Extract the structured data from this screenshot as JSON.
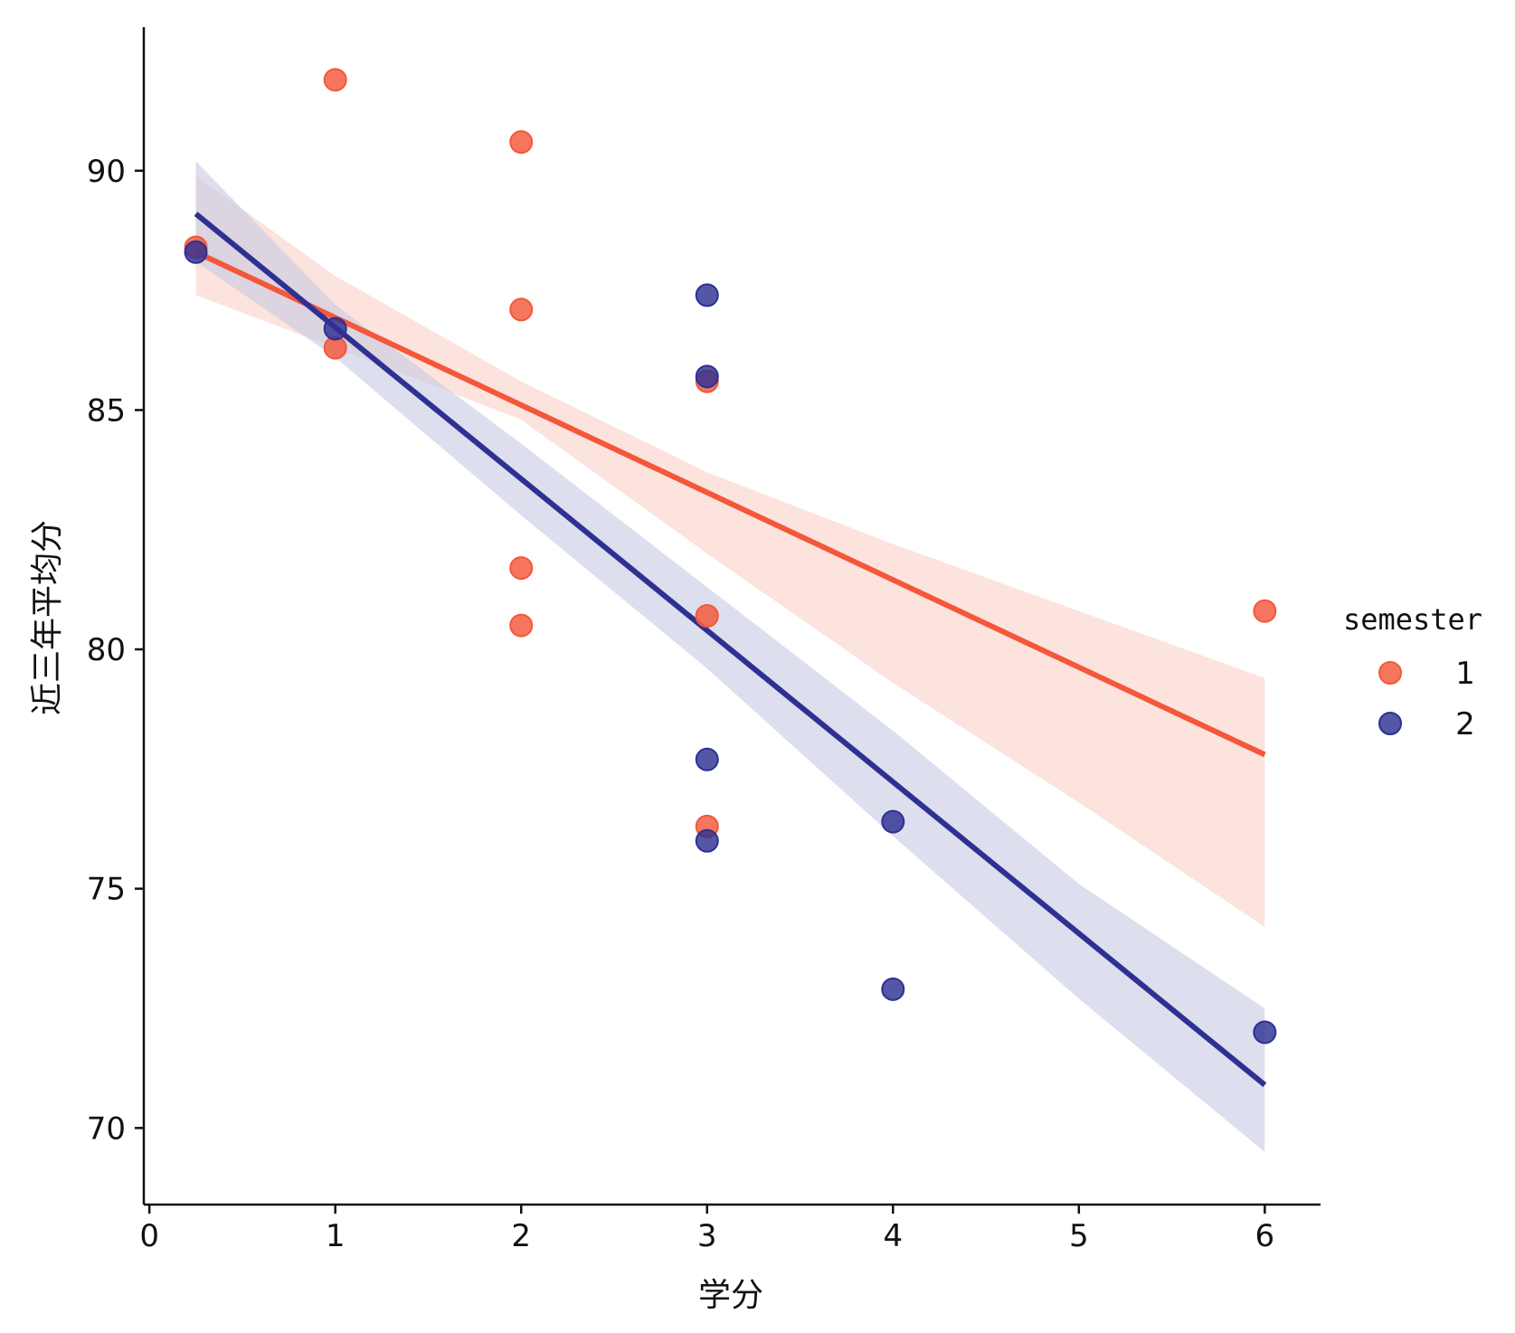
{
  "chart_data": {
    "type": "scatter",
    "title": "",
    "xlabel": "学分",
    "ylabel": "近三年平均分",
    "xlim": [
      -0.03,
      6.3
    ],
    "ylim": [
      68.4,
      93.0
    ],
    "x_ticks": [
      0,
      1,
      2,
      3,
      4,
      5,
      6
    ],
    "y_ticks": [
      70,
      75,
      80,
      85,
      90
    ],
    "grid": false,
    "legend": {
      "title": "semester",
      "placement": "right",
      "entries": [
        "1",
        "2"
      ]
    },
    "series": [
      {
        "name": "1",
        "color": "#F4573A",
        "band_color": "#FAD0C6",
        "points": [
          {
            "x": 0.25,
            "y": 88.4
          },
          {
            "x": 1,
            "y": 91.9
          },
          {
            "x": 1,
            "y": 86.3
          },
          {
            "x": 2,
            "y": 90.6
          },
          {
            "x": 2,
            "y": 87.1
          },
          {
            "x": 2,
            "y": 81.7
          },
          {
            "x": 2,
            "y": 80.5
          },
          {
            "x": 3,
            "y": 85.6
          },
          {
            "x": 3,
            "y": 80.7
          },
          {
            "x": 3,
            "y": 76.3
          },
          {
            "x": 6,
            "y": 80.8
          }
        ],
        "regression": {
          "x": [
            0.25,
            6
          ],
          "y": [
            88.3,
            77.8
          ]
        },
        "ci_band": {
          "x": [
            0.25,
            1,
            2,
            3,
            4,
            5,
            6
          ],
          "lower": [
            87.4,
            86.3,
            84.8,
            82.0,
            79.3,
            76.8,
            74.2
          ],
          "upper": [
            89.9,
            87.8,
            85.6,
            83.7,
            82.2,
            80.8,
            79.4
          ]
        }
      },
      {
        "name": "2",
        "color": "#2E3192",
        "band_color": "#C7C9E3",
        "points": [
          {
            "x": 0.25,
            "y": 88.3
          },
          {
            "x": 1,
            "y": 86.7
          },
          {
            "x": 3,
            "y": 87.4
          },
          {
            "x": 3,
            "y": 85.7
          },
          {
            "x": 3,
            "y": 77.7
          },
          {
            "x": 3,
            "y": 76.0
          },
          {
            "x": 4,
            "y": 76.4
          },
          {
            "x": 4,
            "y": 72.9
          },
          {
            "x": 6,
            "y": 72.0
          }
        ],
        "regression": {
          "x": [
            0.25,
            6
          ],
          "y": [
            89.1,
            70.9
          ]
        },
        "ci_band": {
          "x": [
            0.25,
            1,
            2,
            3,
            4,
            5,
            6
          ],
          "lower": [
            88.1,
            86.1,
            82.8,
            79.6,
            76.1,
            72.7,
            69.5
          ],
          "upper": [
            90.2,
            87.2,
            84.3,
            81.3,
            78.3,
            75.1,
            72.5
          ]
        }
      }
    ]
  }
}
